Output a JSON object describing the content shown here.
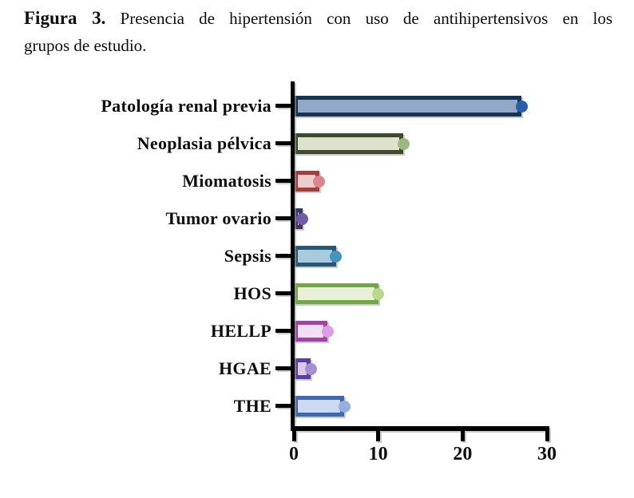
{
  "caption": {
    "label": "Figura 3.",
    "line1": " Presencia de hipertensión con uso de antihipertensivos en los",
    "line2": "grupos de estudio."
  },
  "chart_data": {
    "type": "bar",
    "orientation": "horizontal",
    "title": "Presencia de hipertensión con uso de antihipertensivos en los grupos de estudio",
    "categories": [
      "Patología renal previa",
      "Neoplasia pélvica",
      "Miomatosis",
      "Tumor ovario",
      "Sepsis",
      "HOS",
      "HELLP",
      "HGAE",
      "THE"
    ],
    "values": [
      27,
      13,
      3,
      1,
      5,
      10,
      4,
      2,
      6
    ],
    "xlabel": "",
    "ylabel": "",
    "xlim": [
      0,
      30
    ],
    "x_ticks": [
      "0",
      "10",
      "20",
      "30"
    ],
    "grid": false,
    "legend": false,
    "marker": "circle-at-bar-end",
    "axis_color": "#000000",
    "series_colors": [
      {
        "border": "#163353",
        "fill": "#93a8c7",
        "dot": "#2a5fa8"
      },
      {
        "border": "#3f4a2d",
        "fill": "#dce2cb",
        "dot": "#9ab97e"
      },
      {
        "border": "#a43c3c",
        "fill": "#edccce",
        "dot": "#d9878d"
      },
      {
        "border": "#3d355f",
        "fill": "#cfc9dd",
        "dot": "#6f5cab"
      },
      {
        "border": "#275674",
        "fill": "#a8cadd",
        "dot": "#4395bc"
      },
      {
        "border": "#73a647",
        "fill": "#e8f1d8",
        "dot": "#b8da8b"
      },
      {
        "border": "#a341a8",
        "fill": "#f2def5",
        "dot": "#df9ce6"
      },
      {
        "border": "#5c3da0",
        "fill": "#d7cbe9",
        "dot": "#a78fd3"
      },
      {
        "border": "#3e68af",
        "fill": "#cdd9f0",
        "dot": "#93afdf"
      }
    ]
  }
}
